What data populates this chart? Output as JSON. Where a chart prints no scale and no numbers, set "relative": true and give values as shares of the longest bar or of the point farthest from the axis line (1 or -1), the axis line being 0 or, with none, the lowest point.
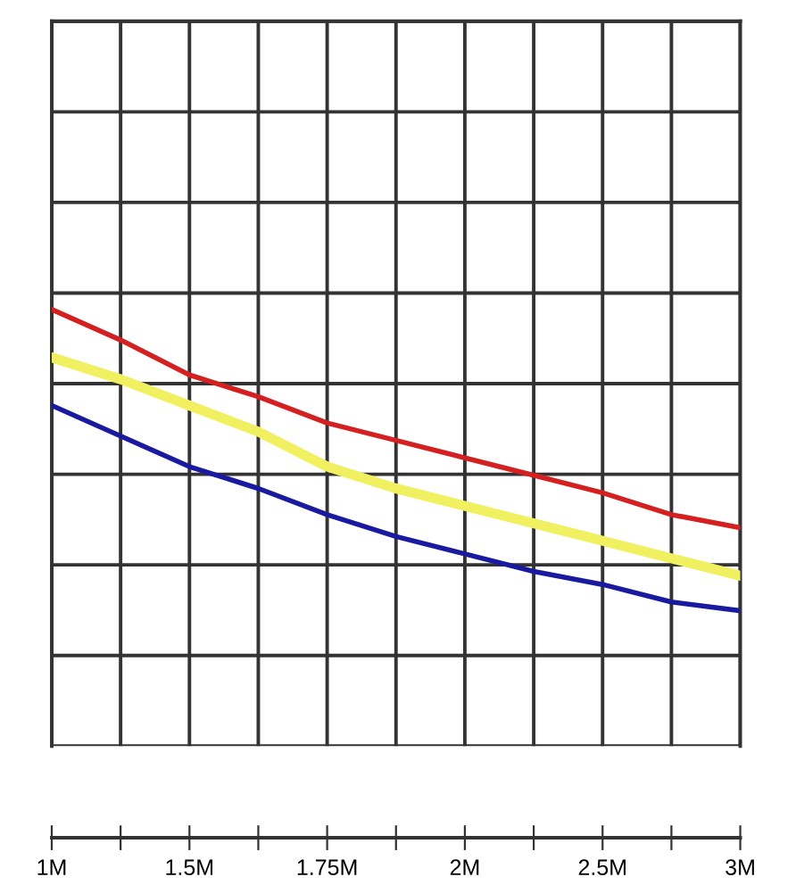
{
  "chart_data": {
    "type": "line",
    "relative": true,
    "grid": true,
    "legend": false,
    "marker": "none",
    "line_style": "solid",
    "categories": [
      "1M",
      null,
      "1.5M",
      null,
      "1.75M",
      null,
      "2M",
      null,
      "2.5M",
      null,
      "3M"
    ],
    "series": [
      {
        "color": "#d42020",
        "values": [
          1,
          0.93,
          0.85,
          0.8,
          0.74,
          0.7,
          0.66,
          0.62,
          0.58,
          0.53,
          0.5
        ]
      },
      {
        "color": "#f0f060",
        "values": [
          0.89,
          0.84,
          0.78,
          0.72,
          0.64,
          0.59,
          0.55,
          0.51,
          0.47,
          0.43,
          0.39
        ]
      },
      {
        "color": "#1a1aa0",
        "values": [
          0.78,
          0.71,
          0.64,
          0.59,
          0.53,
          0.48,
          0.44,
          0.4,
          0.37,
          0.33,
          0.31
        ]
      }
    ]
  }
}
